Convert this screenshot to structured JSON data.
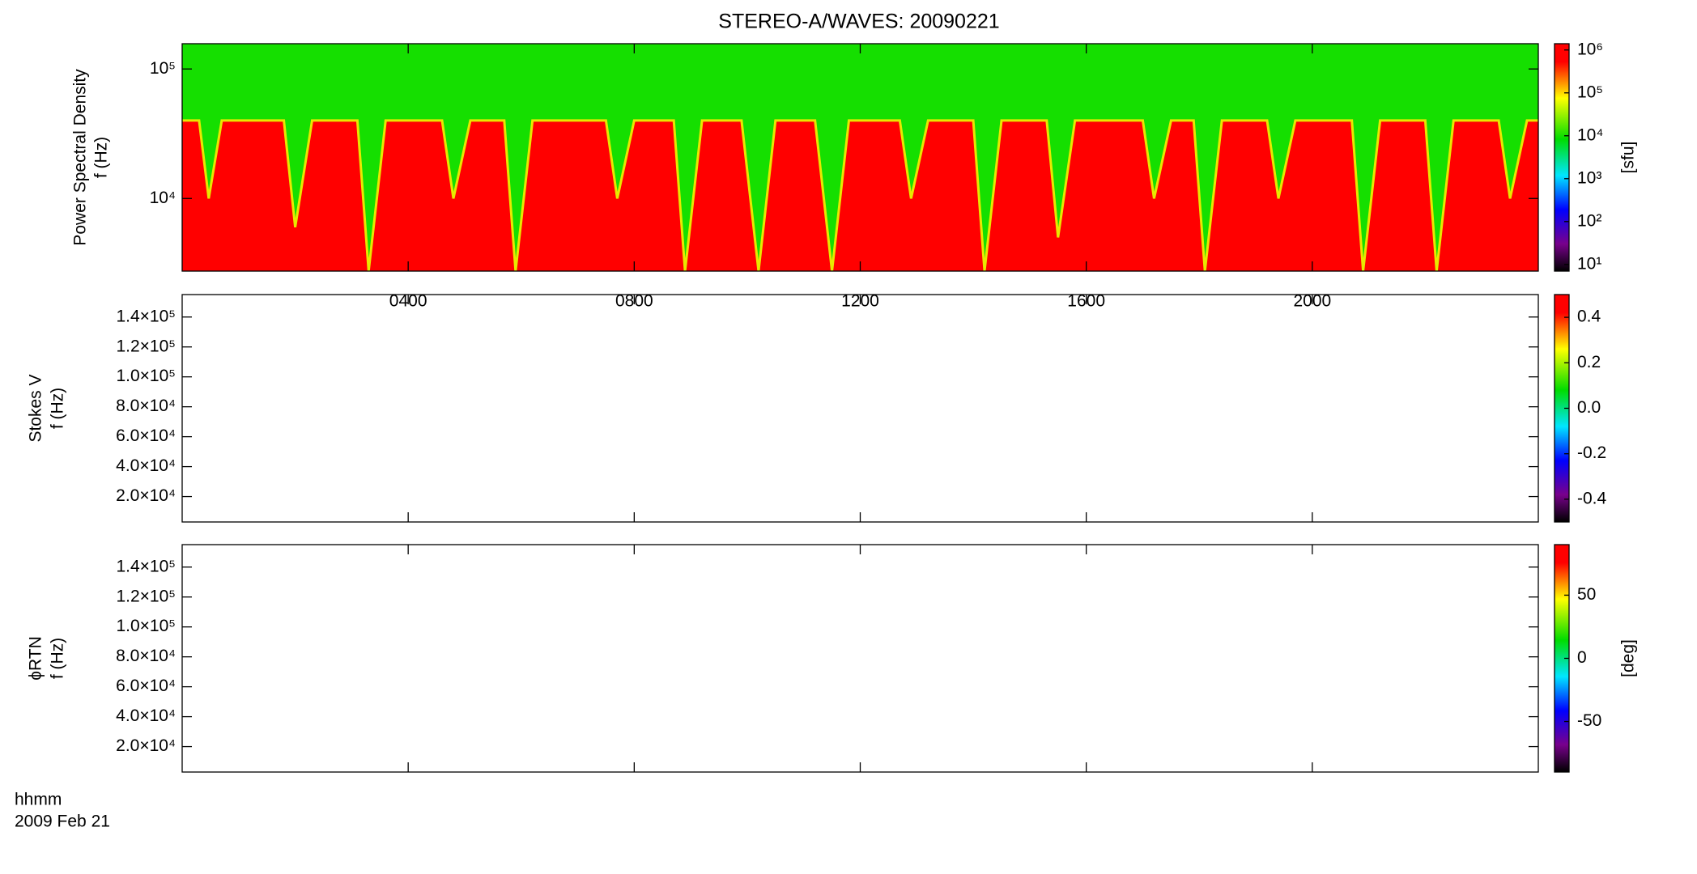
{
  "title": "STEREO-A/WAVES: 20090221",
  "time_label": [
    "hhmm",
    "2009 Feb 21"
  ],
  "chart_data": [
    {
      "type": "spectrogram",
      "ylabel": [
        "Power Spectral Density",
        "f (Hz)"
      ],
      "ylog": true,
      "xlim": [
        0,
        24
      ],
      "xticks": [
        {
          "value": 4,
          "label": "0400"
        },
        {
          "value": 8,
          "label": "0800"
        },
        {
          "value": 12,
          "label": "1200"
        },
        {
          "value": 16,
          "label": "1600"
        },
        {
          "value": 20,
          "label": "2000"
        }
      ],
      "ylim": [
        2750,
        156700
      ],
      "yticks": [
        {
          "value": 10000,
          "label": "10⁴"
        },
        {
          "value": 100000,
          "label": "10⁵"
        }
      ],
      "zlog": true,
      "zlim": [
        7,
        1400000
      ],
      "zticks": [
        {
          "value": 10,
          "label": "10¹"
        },
        {
          "value": 100,
          "label": "10²"
        },
        {
          "value": 1000,
          "label": "10³"
        },
        {
          "value": 10000,
          "label": "10⁴"
        },
        {
          "value": 100000,
          "label": "10⁵"
        },
        {
          "value": 1000000,
          "label": "10⁶"
        }
      ],
      "zlabel": "[sfu]",
      "levels": {
        "above": 10000,
        "below": 1000000
      },
      "cutoff": {
        "x": [
          0,
          0.3,
          0.47,
          0.7,
          1.8,
          2.0,
          2.3,
          3.1,
          3.3,
          3.6,
          4.6,
          4.8,
          5.1,
          5.7,
          5.9,
          6.2,
          7.5,
          7.7,
          8.0,
          8.7,
          8.9,
          9.2,
          9.9,
          10.2,
          10.5,
          11.2,
          11.5,
          11.8,
          12.7,
          12.9,
          13.2,
          14.0,
          14.2,
          14.5,
          15.3,
          15.5,
          15.8,
          17.0,
          17.2,
          17.5,
          17.9,
          18.1,
          18.4,
          19.2,
          19.4,
          19.7,
          20.7,
          20.9,
          21.2,
          22.0,
          22.2,
          22.5,
          23.3,
          23.5,
          23.8,
          24
        ],
        "values": [
          40000,
          40000,
          10000,
          40000,
          40000,
          6000,
          40000,
          40000,
          2750,
          40000,
          40000,
          10000,
          40000,
          40000,
          2750,
          40000,
          40000,
          10000,
          40000,
          40000,
          2750,
          40000,
          40000,
          2750,
          40000,
          40000,
          2750,
          40000,
          40000,
          10000,
          40000,
          40000,
          2750,
          40000,
          40000,
          5000,
          40000,
          40000,
          10000,
          40000,
          40000,
          2750,
          40000,
          40000,
          10000,
          40000,
          40000,
          2750,
          40000,
          40000,
          2750,
          40000,
          40000,
          10000,
          40000,
          40000
        ]
      }
    },
    {
      "type": "spectrogram",
      "ylabel": [
        "Stokes V",
        "f (Hz)"
      ],
      "ylog": false,
      "xlim": [
        0,
        24
      ],
      "xticks": [
        4,
        8,
        12,
        16,
        20
      ],
      "ylim": [
        3000,
        155000
      ],
      "yticks": [
        {
          "value": 20000,
          "label": "2.0×10⁴"
        },
        {
          "value": 40000,
          "label": "4.0×10⁴"
        },
        {
          "value": 60000,
          "label": "6.0×10⁴"
        },
        {
          "value": 80000,
          "label": "8.0×10⁴"
        },
        {
          "value": 100000,
          "label": "1.0×10⁵"
        },
        {
          "value": 120000,
          "label": "1.2×10⁵"
        },
        {
          "value": 140000,
          "label": "1.4×10⁵"
        }
      ],
      "zlog": false,
      "zlim": [
        -0.5,
        0.5
      ],
      "zticks": [
        -0.4,
        -0.2,
        {
          "value": 0,
          "label": "0.0"
        },
        0.2,
        0.4
      ]
    },
    {
      "type": "spectrogram",
      "ylabel": [
        "ϕRTN",
        "f (Hz)"
      ],
      "ylog": false,
      "xlim": [
        0,
        24
      ],
      "xticks": [
        4,
        8,
        12,
        16,
        20
      ],
      "ylim": [
        3000,
        155000
      ],
      "yticks": [
        {
          "value": 20000,
          "label": "2.0×10⁴"
        },
        {
          "value": 40000,
          "label": "4.0×10⁴"
        },
        {
          "value": 60000,
          "label": "6.0×10⁴"
        },
        {
          "value": 80000,
          "label": "8.0×10⁴"
        },
        {
          "value": 100000,
          "label": "1.0×10⁵"
        },
        {
          "value": 120000,
          "label": "1.2×10⁵"
        },
        {
          "value": 140000,
          "label": "1.4×10⁵"
        }
      ],
      "zlog": false,
      "zlim": [
        -90,
        90
      ],
      "zticks": [
        -50,
        0,
        50
      ],
      "zlabel": "[deg]"
    }
  ]
}
